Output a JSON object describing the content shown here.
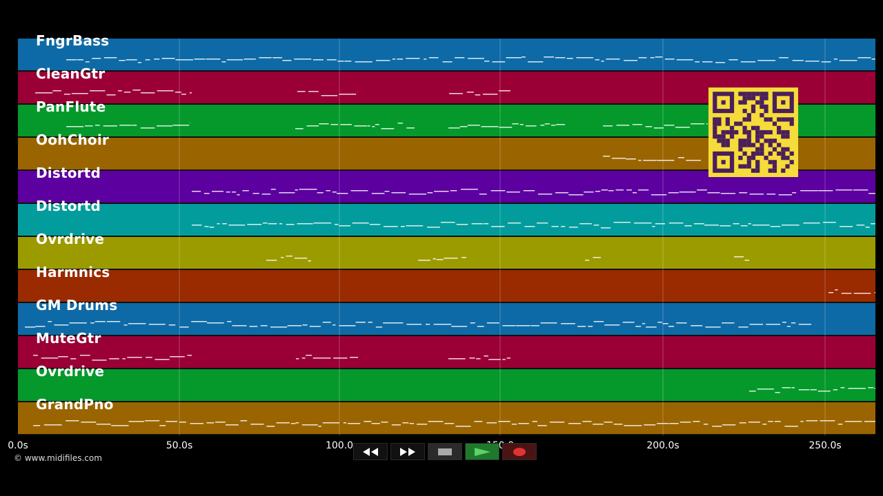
{
  "tracks": [
    {
      "name": "FngrBass",
      "color": "#0e6aa6"
    },
    {
      "name": "CleanGtr",
      "color": "#9a0035"
    },
    {
      "name": "PanFlute",
      "color": "#05992b"
    },
    {
      "name": "OohChoir",
      "color": "#9a6500"
    },
    {
      "name": "Distortd",
      "color": "#5c00a0"
    },
    {
      "name": "Distortd",
      "color": "#039c9c"
    },
    {
      "name": "Ovrdrive",
      "color": "#9b9b00"
    },
    {
      "name": "Harmnics",
      "color": "#9a2a00"
    },
    {
      "name": "GM Drums",
      "color": "#0e6aa6"
    },
    {
      "name": "MuteGtr",
      "color": "#9a0035"
    },
    {
      "name": "Ovrdrive",
      "color": "#05992b"
    },
    {
      "name": "GrandPno",
      "color": "#9a6500"
    }
  ],
  "timeline": {
    "ticks": [
      "0.0s",
      "50.0s",
      "100.0",
      "150.0",
      "200.0s",
      "250.0s"
    ]
  },
  "copyright": "© www.midifiles.com",
  "transport": {
    "buttons": [
      {
        "name": "rewind-button",
        "icon": "rewind-icon"
      },
      {
        "name": "fast-forward-button",
        "icon": "fast-forward-icon"
      },
      {
        "name": "stop-button",
        "icon": "stop-icon"
      },
      {
        "name": "play-button",
        "icon": "play-icon"
      },
      {
        "name": "record-button",
        "icon": "record-icon"
      }
    ]
  },
  "qr": {
    "icon": "qr-code-icon",
    "color": "#f5dc3a",
    "dark": "#4a1f5a"
  }
}
